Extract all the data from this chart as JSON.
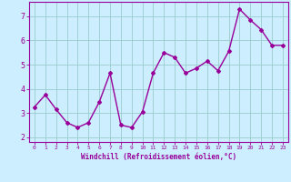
{
  "x": [
    0,
    1,
    2,
    3,
    4,
    5,
    6,
    7,
    8,
    9,
    10,
    11,
    12,
    13,
    14,
    15,
    16,
    17,
    18,
    19,
    20,
    21,
    22,
    23
  ],
  "y": [
    3.25,
    3.75,
    3.15,
    2.6,
    2.4,
    2.6,
    3.45,
    4.65,
    2.5,
    2.4,
    3.05,
    4.65,
    5.5,
    5.3,
    4.65,
    4.85,
    5.15,
    4.75,
    5.55,
    7.3,
    6.85,
    6.45,
    5.8,
    5.8
  ],
  "line_color": "#990099",
  "marker": "D",
  "markersize": 2,
  "linewidth": 1.0,
  "bg_color": "#cceeff",
  "grid_color": "#99cccc",
  "tick_color": "#990099",
  "label_color": "#990099",
  "xlabel": "Windchill (Refroidissement éolien,°C)",
  "ylabel": "",
  "ylim": [
    1.8,
    7.6
  ],
  "yticks": [
    2,
    3,
    4,
    5,
    6,
    7
  ],
  "title": ""
}
